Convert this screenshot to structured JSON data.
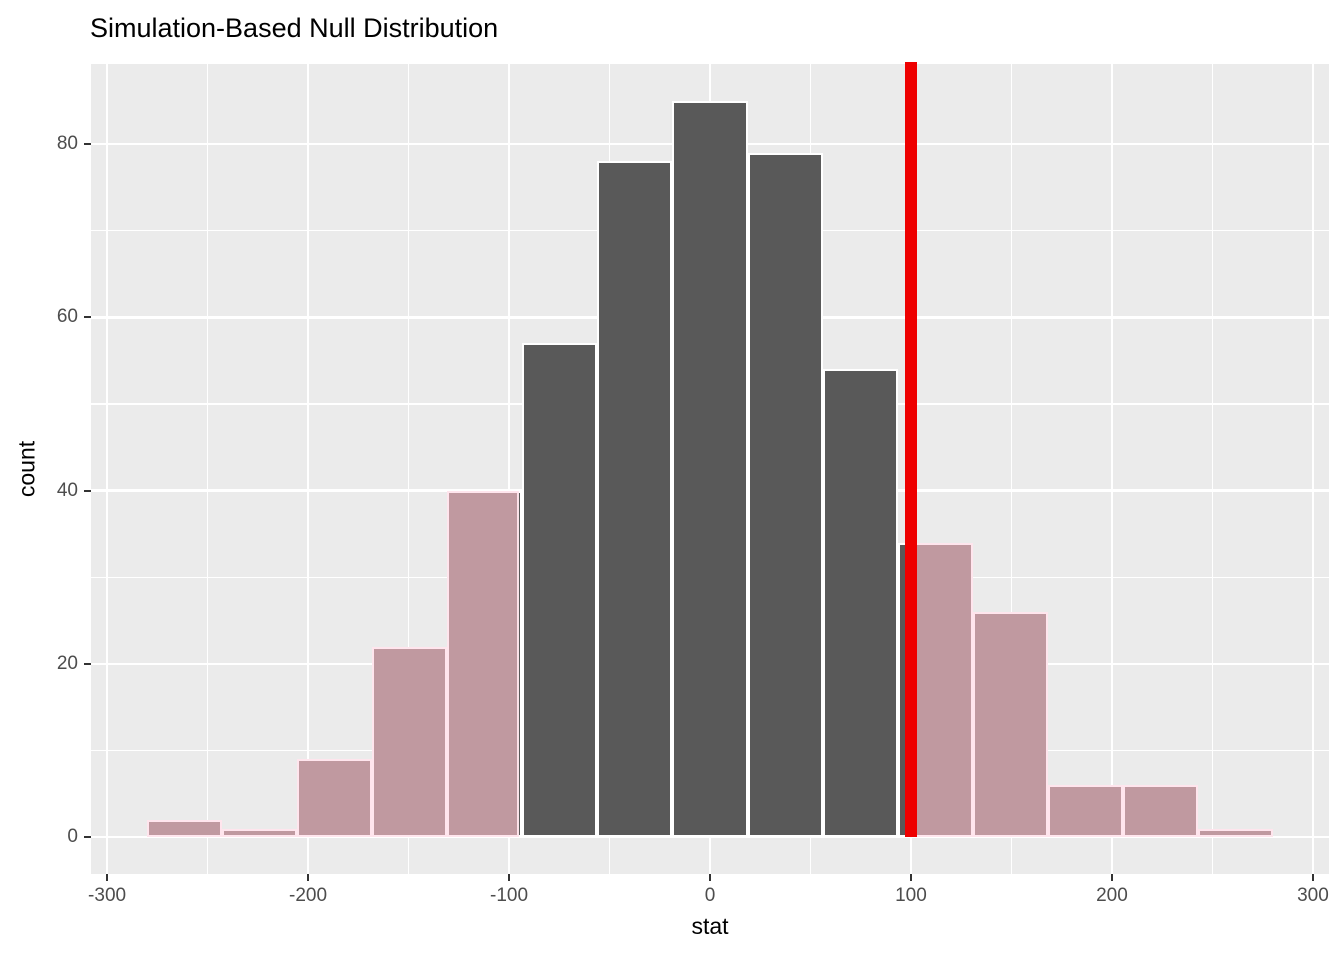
{
  "title": "Simulation-Based Null Distribution",
  "chart_data": {
    "type": "bar",
    "subtype": "histogram-with-shaded-p-value",
    "title": "Simulation-Based Null Distribution",
    "xlabel": "stat",
    "ylabel": "count",
    "bin_start": -280,
    "bin_width": 37.3333,
    "counts": [
      2,
      1,
      9,
      22,
      40,
      57,
      78,
      85,
      79,
      54,
      34,
      26,
      6,
      6,
      1
    ],
    "x_ticks": [
      -300,
      -200,
      -100,
      0,
      100,
      200,
      300
    ],
    "y_ticks": [
      0,
      20,
      40,
      60,
      80
    ],
    "x_minor_ticks": [
      -250,
      -150,
      -50,
      50,
      150,
      250
    ],
    "y_minor_ticks": [
      10,
      30,
      50,
      70
    ],
    "x_range": [
      -308,
      308
    ],
    "y_range": [
      -4.25,
      89.25
    ],
    "grid": true,
    "legend": "none",
    "observed_stat": 100,
    "shade": {
      "left_max": -95.2,
      "right_min": 100
    },
    "colors": {
      "panel_background": "#EBEBEB",
      "gridline": "#FFFFFF",
      "bar_fill": "#595959",
      "bar_stroke": "#FFFFFF",
      "shade_fill": "rgba(255,192,203,0.62)",
      "shade_stroke": "rgba(255,230,237,0.95)",
      "observed_line": "#EE0000",
      "tick_mark": "#333333",
      "tick_label": "#4D4D4D",
      "text": "#000000"
    }
  }
}
